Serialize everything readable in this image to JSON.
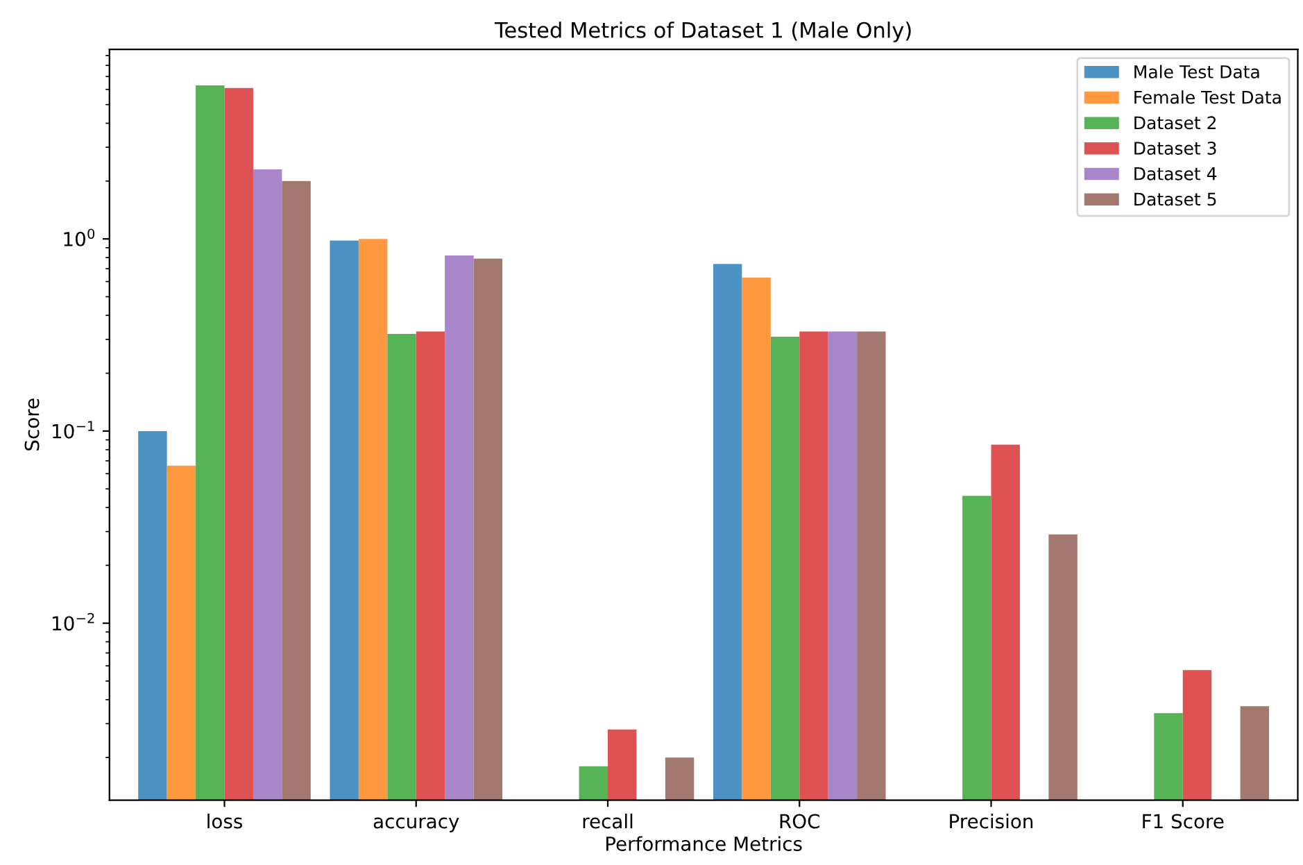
{
  "chart_data": {
    "type": "bar",
    "title": "Tested Metrics of Dataset 1 (Male Only)",
    "xlabel": "Performance Metrics",
    "ylabel": "Score",
    "categories": [
      "loss",
      "accuracy",
      "recall",
      "ROC",
      "Precision",
      "F1 Score"
    ],
    "series": [
      {
        "name": "Male Test Data",
        "color": "#4c92c3",
        "values": [
          0.1,
          0.98,
          null,
          0.74,
          null,
          null
        ]
      },
      {
        "name": "Female Test Data",
        "color": "#ff983e",
        "values": [
          0.066,
          1.0,
          null,
          0.63,
          null,
          null
        ]
      },
      {
        "name": "Dataset 2",
        "color": "#56b356",
        "values": [
          6.3,
          0.32,
          0.0018,
          0.31,
          0.046,
          0.0034
        ]
      },
      {
        "name": "Dataset 3",
        "color": "#de5253",
        "values": [
          6.1,
          0.33,
          0.0028,
          0.33,
          0.085,
          0.0057
        ]
      },
      {
        "name": "Dataset 4",
        "color": "#a985ca",
        "values": [
          2.3,
          0.82,
          null,
          0.33,
          null,
          null
        ]
      },
      {
        "name": "Dataset 5",
        "color": "#a3786f",
        "values": [
          2.0,
          0.79,
          0.002,
          0.33,
          0.029,
          0.0037
        ]
      }
    ],
    "log": "y",
    "ylim": [
      0.0012,
      9.7
    ],
    "yticks": [
      {
        "value": 0.01,
        "label": "10$^{−2}$"
      },
      {
        "value": 0.1,
        "label": "10$^{−1}$"
      },
      {
        "value": 1,
        "label": "10$^{0}$"
      }
    ],
    "legend": "top right",
    "grid": false
  }
}
